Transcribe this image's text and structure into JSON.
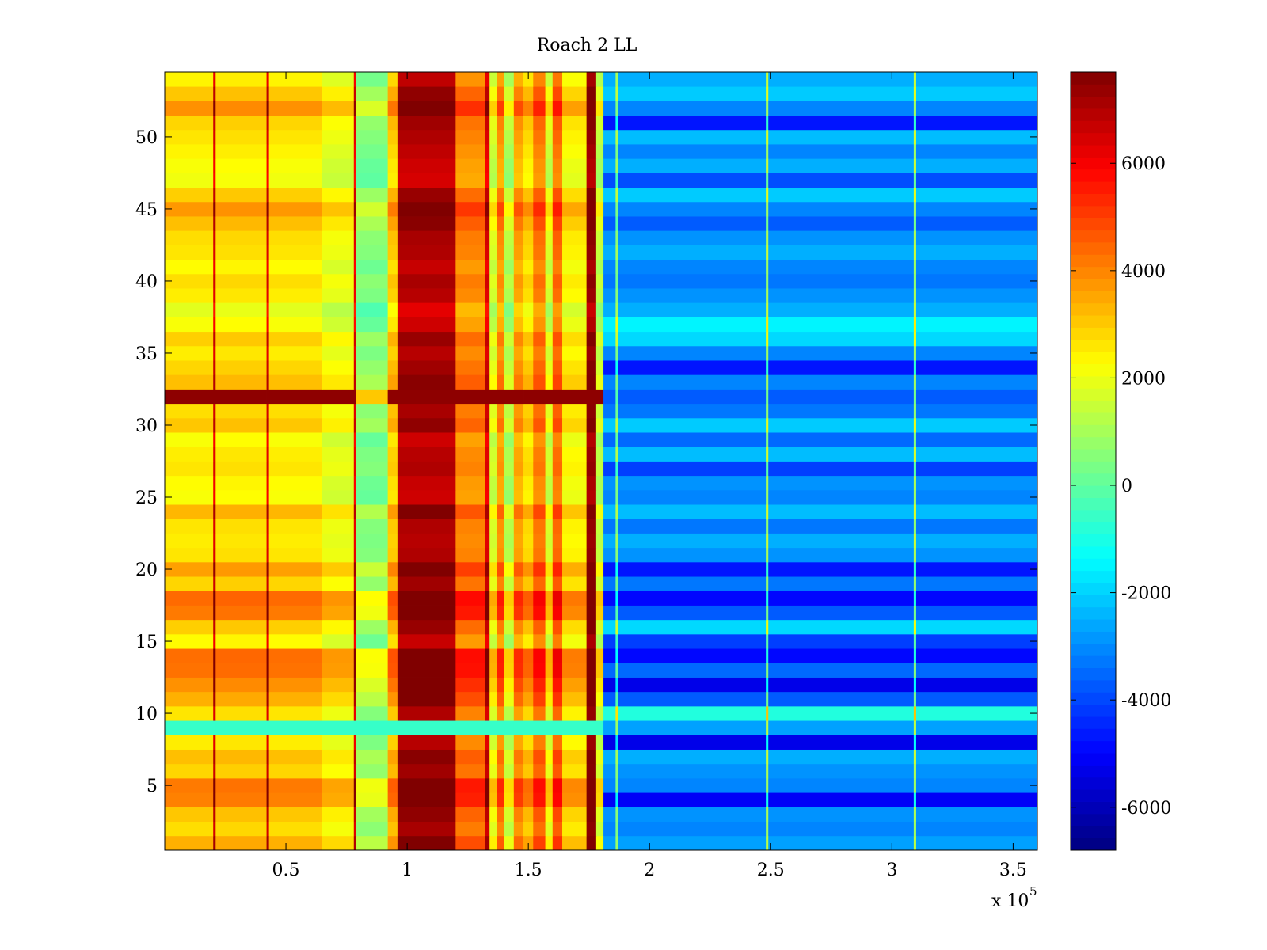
{
  "chart_data": {
    "type": "heatmap",
    "title": "Roach 2 LL",
    "xlabel": "",
    "ylabel": "",
    "x_multiplier_label": "x 10",
    "x_multiplier_exponent": "5",
    "xlim": [
      0,
      3.6
    ],
    "ylim": [
      0.5,
      54.5
    ],
    "rows": 54,
    "x_ticks": [
      0.5,
      1,
      1.5,
      2,
      2.5,
      3,
      3.5
    ],
    "x_tick_labels": [
      "0.5",
      "1",
      "1.5",
      "2",
      "2.5",
      "3",
      "3.5"
    ],
    "y_ticks": [
      5,
      10,
      15,
      20,
      25,
      30,
      35,
      40,
      45,
      50
    ],
    "y_tick_labels": [
      "5",
      "10",
      "15",
      "20",
      "25",
      "30",
      "35",
      "40",
      "45",
      "50"
    ],
    "colorbar": {
      "colormap": "jet",
      "clim": [
        -6800,
        7700
      ],
      "ticks": [
        6000,
        4000,
        2000,
        0,
        -2000,
        -4000,
        -6000
      ],
      "tick_labels": [
        "6000",
        "4000",
        "2000",
        "0",
        "-2000",
        "-4000",
        "-6000"
      ]
    },
    "column_profile": [
      {
        "x0": 0.0,
        "x1": 0.2,
        "value": 2400
      },
      {
        "x0": 0.2,
        "x1": 0.21,
        "value": 6200
      },
      {
        "x0": 0.21,
        "x1": 0.42,
        "value": 2500
      },
      {
        "x0": 0.42,
        "x1": 0.43,
        "value": 6200
      },
      {
        "x0": 0.43,
        "x1": 0.65,
        "value": 2400
      },
      {
        "x0": 0.65,
        "x1": 0.78,
        "value": 1800
      },
      {
        "x0": 0.78,
        "x1": 0.79,
        "value": 6000
      },
      {
        "x0": 0.79,
        "x1": 0.92,
        "value": 300
      },
      {
        "x0": 0.92,
        "x1": 0.96,
        "value": 2800
      },
      {
        "x0": 0.96,
        "x1": 1.2,
        "value": 6800
      },
      {
        "x0": 1.2,
        "x1": 1.32,
        "value": 3800
      },
      {
        "x0": 1.32,
        "x1": 1.34,
        "value": 6200
      },
      {
        "x0": 1.34,
        "x1": 1.37,
        "value": 1500
      },
      {
        "x0": 1.37,
        "x1": 1.4,
        "value": 3600
      },
      {
        "x0": 1.4,
        "x1": 1.44,
        "value": 1000
      },
      {
        "x0": 1.44,
        "x1": 1.48,
        "value": 3400
      },
      {
        "x0": 1.48,
        "x1": 1.52,
        "value": 2600
      },
      {
        "x0": 1.52,
        "x1": 1.57,
        "value": 4000
      },
      {
        "x0": 1.57,
        "x1": 1.6,
        "value": 1500
      },
      {
        "x0": 1.6,
        "x1": 1.64,
        "value": 4200
      },
      {
        "x0": 1.64,
        "x1": 1.74,
        "value": 2200
      },
      {
        "x0": 1.74,
        "x1": 1.78,
        "value": 7200
      },
      {
        "x0": 1.78,
        "x1": 1.81,
        "value": 1200
      },
      {
        "x0": 1.81,
        "x1": 1.86,
        "value": -2500
      },
      {
        "x0": 1.86,
        "x1": 1.87,
        "value": 1000
      },
      {
        "x0": 1.87,
        "x1": 2.48,
        "value": -2500
      },
      {
        "x0": 2.48,
        "x1": 2.49,
        "value": 1500
      },
      {
        "x0": 2.49,
        "x1": 3.09,
        "value": -2500
      },
      {
        "x0": 3.09,
        "x1": 3.1,
        "value": 1500
      },
      {
        "x0": 3.1,
        "x1": 3.6,
        "value": -2500
      }
    ],
    "row_profile": {
      "left_offsets": [
        1800,
        600,
        1200,
        3000,
        3200,
        800,
        1400,
        200,
        -2000,
        400,
        1800,
        2600,
        3400,
        3500,
        -200,
        1000,
        3200,
        3600,
        800,
        2200,
        400,
        200,
        400,
        1600,
        -400,
        -200,
        400,
        200,
        -400,
        1200,
        600,
        5000,
        1400,
        800,
        200,
        1000,
        -400,
        -1000,
        200,
        600,
        -200,
        400,
        600,
        1400,
        2400,
        1000,
        -600,
        -400,
        0,
        400,
        800,
        2600,
        1200,
        0
      ],
      "right_offsets": [
        -200,
        -600,
        -400,
        -2600,
        -600,
        -400,
        0,
        -2800,
        -200,
        1600,
        -1200,
        -2800,
        -1000,
        -2400,
        -1600,
        600,
        -1200,
        -2400,
        -800,
        -2200,
        -400,
        0,
        -800,
        200,
        -600,
        -400,
        -1600,
        200,
        -1000,
        400,
        -800,
        -1200,
        -600,
        -2200,
        -600,
        600,
        1000,
        0,
        -400,
        -800,
        -600,
        0,
        -400,
        -1200,
        -600,
        400,
        -1400,
        0,
        -600,
        200,
        -2200,
        -600,
        400,
        0
      ]
    },
    "annotations": [
      "row 32 saturated (~7500) on left half",
      "row 9 near zero on left half"
    ]
  }
}
